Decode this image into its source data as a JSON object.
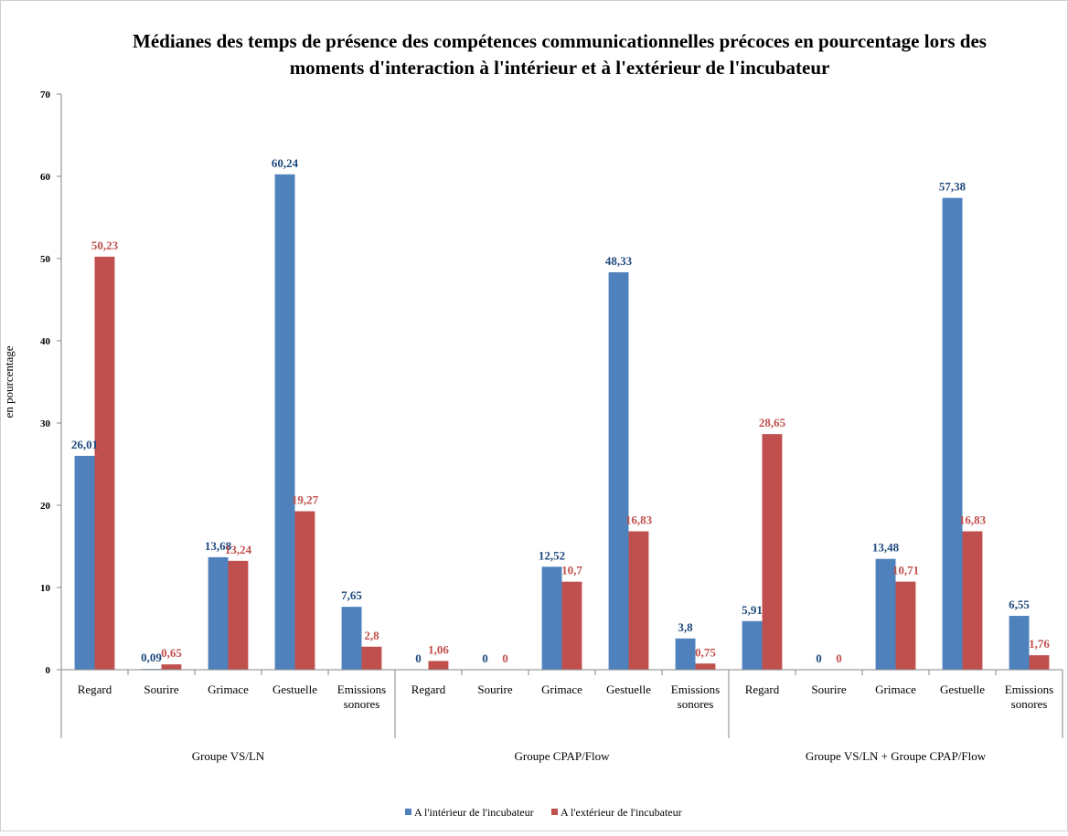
{
  "chart_data": {
    "type": "bar",
    "title_line1": "Médianes des temps de présence des compétences communicationnelles précoces en pourcentage lors des",
    "title_line2": "moments d'interaction à l'intérieur et à l'extérieur de l'incubateur",
    "ylabel": "en pourcentage",
    "xlabel": "",
    "ylim": [
      0,
      70
    ],
    "yticks": [
      "0",
      "10",
      "20",
      "30",
      "40",
      "50",
      "60",
      "70"
    ],
    "grid": false,
    "legend_position": "bottom",
    "groups": [
      {
        "label": "Groupe VS/LN",
        "categories": [
          "Regard",
          "Sourire",
          "Grimace",
          "Gestuelle",
          "Emissions sonores"
        ]
      },
      {
        "label": "Groupe CPAP/Flow",
        "categories": [
          "Regard",
          "Sourire",
          "Grimace",
          "Gestuelle",
          "Emissions sonores"
        ]
      },
      {
        "label": "Groupe VS/LN + Groupe CPAP/Flow",
        "categories": [
          "Regard",
          "Sourire",
          "Grimace",
          "Gestuelle",
          "Emissions sonores"
        ]
      }
    ],
    "series": [
      {
        "name": "A l'intérieur de l'incubateur",
        "color": "#4F81BD",
        "values": [
          26.01,
          0.09,
          13.68,
          60.24,
          7.65,
          0,
          0,
          12.52,
          48.33,
          3.8,
          5.91,
          0,
          13.48,
          57.38,
          6.55
        ],
        "labels": [
          "26,01",
          "0,09",
          "13,68",
          "60,24",
          "7,65",
          "0",
          "0",
          "12,52",
          "48,33",
          "3,8",
          "5,91",
          "0",
          "13,48",
          "57,38",
          "6,55"
        ]
      },
      {
        "name": "A l'extérieur de l'incubateur",
        "color": "#C0504D",
        "values": [
          50.23,
          0.65,
          13.24,
          19.27,
          2.8,
          1.06,
          0,
          10.7,
          16.83,
          0.75,
          28.65,
          0,
          10.71,
          16.83,
          1.76
        ],
        "labels": [
          "50,23",
          "0,65",
          "13,24",
          "19,27",
          "2,8",
          "1,06",
          "0",
          "10,7",
          "16,83",
          "0,75",
          "28,65",
          "0",
          "10,71",
          "16,83",
          "1,76"
        ]
      }
    ]
  }
}
